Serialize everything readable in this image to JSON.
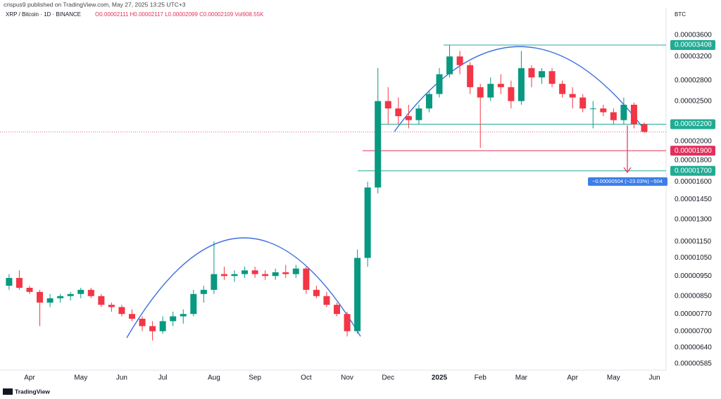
{
  "header": {
    "byline": "crispus9 published on TradingView.com, May 27, 2025 13:25 UTC+3",
    "symbol": "XRP / Bitcoin · 1D · BINANCE",
    "ohlc": "O0.00002111 H0.00002117 L0.00002099 C0.00002109 Vol908.55K",
    "currency": "BTC"
  },
  "footer": {
    "brand": "TradingView"
  },
  "chart_data": {
    "type": "candlestick",
    "log_scale": true,
    "grid": false,
    "up_color": "#089981",
    "down_color": "#f23645",
    "categories": [
      null,
      null,
      "Apr",
      null,
      null,
      null,
      null,
      "May",
      null,
      null,
      null,
      "Jun",
      null,
      null,
      null,
      "Jul",
      null,
      null,
      null,
      null,
      "Aug",
      null,
      null,
      null,
      "Sep",
      null,
      null,
      null,
      null,
      "Oct",
      null,
      null,
      null,
      "Nov",
      null,
      null,
      null,
      "Dec",
      null,
      null,
      null,
      null,
      "2025",
      null,
      null,
      null,
      "Feb",
      null,
      null,
      null,
      "Mar",
      null,
      null,
      null,
      null,
      "Apr",
      null,
      null,
      null,
      "May",
      null,
      null,
      null,
      "Jun"
    ],
    "open": [
      9e-06,
      9.4e-06,
      8.9e-06,
      8.7e-06,
      8.2e-06,
      8.4e-06,
      8.5e-06,
      8.6e-06,
      8.8e-06,
      8.5e-06,
      8.1e-06,
      8e-06,
      7.7e-06,
      7.5e-06,
      7.2e-06,
      7e-06,
      7.4e-06,
      7.6e-06,
      7.7e-06,
      8.6e-06,
      8.8e-06,
      9.6e-06,
      9.5e-06,
      9.6e-06,
      9.8e-06,
      9.6e-06,
      9.5e-06,
      9.7e-06,
      9.6e-06,
      9.9e-06,
      8.8e-06,
      8.5e-06,
      8.1e-06,
      7.7e-06,
      7e-06,
      1.05e-05,
      1.55e-05,
      2.5e-05,
      2.4e-05,
      2.3e-05,
      2.25e-05,
      2.4e-05,
      2.6e-05,
      2.9e-05,
      3.2e-05,
      3.05e-05,
      2.7e-05,
      2.55e-05,
      2.75e-05,
      2.7e-05,
      2.5e-05,
      3e-05,
      2.85e-05,
      2.95e-05,
      2.75e-05,
      2.6e-05,
      2.55e-05,
      2.4e-05,
      2.4e-05,
      2.35e-05,
      2.25e-05,
      2.45e-05,
      2.2e-05,
      null
    ],
    "high": [
      9.6e-06,
      9.8e-06,
      9e-06,
      8.8e-06,
      8.6e-06,
      8.6e-06,
      8.7e-06,
      8.9e-06,
      8.9e-06,
      8.6e-06,
      8.2e-06,
      8.1e-06,
      7.9e-06,
      7.6e-06,
      7.4e-06,
      7.6e-06,
      7.8e-06,
      7.9e-06,
      8.8e-06,
      9e-06,
      1.15e-05,
      1e-05,
      9.8e-06,
      1e-05,
      1e-05,
      9.8e-06,
      9.9e-06,
      1.01e-05,
      1.01e-05,
      1e-05,
      9e-06,
      8.7e-06,
      8.2e-06,
      7.8e-06,
      1.1e-05,
      1.6e-05,
      3e-05,
      2.7e-05,
      2.55e-05,
      2.45e-05,
      2.45e-05,
      2.65e-05,
      3e-05,
      3.408e-05,
      3.3e-05,
      3.1e-05,
      2.75e-05,
      2.85e-05,
      2.9e-05,
      2.8e-05,
      3.3e-05,
      3.05e-05,
      3e-05,
      3e-05,
      2.8e-05,
      2.7e-05,
      2.6e-05,
      2.5e-05,
      2.45e-05,
      2.4e-05,
      2.55e-05,
      2.48e-05,
      2.22e-05,
      null
    ],
    "low": [
      8.8e-06,
      8.8e-06,
      8.6e-06,
      7.2e-06,
      8e-06,
      8.2e-06,
      8.3e-06,
      8.4e-06,
      8.4e-06,
      8e-06,
      7.8e-06,
      7.6e-06,
      7.4e-06,
      7e-06,
      6.65e-06,
      6.9e-06,
      7.2e-06,
      7.3e-06,
      7.6e-06,
      8.2e-06,
      8.6e-06,
      9.3e-06,
      9.2e-06,
      9.4e-06,
      9.4e-06,
      9.3e-06,
      9.3e-06,
      9.4e-06,
      9.4e-06,
      8.6e-06,
      8.4e-06,
      8e-06,
      7.6e-06,
      6.8e-06,
      6.9e-06,
      1e-05,
      1.5e-05,
      2.2e-05,
      2.2e-05,
      2.15e-05,
      2.2e-05,
      2.35e-05,
      2.55e-05,
      2.85e-05,
      2.9e-05,
      2.6e-05,
      1.93e-05,
      2.5e-05,
      2.6e-05,
      2.4e-05,
      2.45e-05,
      2.7e-05,
      2.75e-05,
      2.7e-05,
      2.55e-05,
      2.4e-05,
      2.35e-05,
      2.15e-05,
      2.3e-05,
      2.2e-05,
      2.2e-05,
      2.15e-05,
      2.099e-05,
      null
    ],
    "close": [
      9.4e-06,
      8.9e-06,
      8.7e-06,
      8.2e-06,
      8.4e-06,
      8.5e-06,
      8.6e-06,
      8.8e-06,
      8.5e-06,
      8.1e-06,
      8e-06,
      7.7e-06,
      7.5e-06,
      7.2e-06,
      7e-06,
      7.4e-06,
      7.6e-06,
      7.7e-06,
      8.6e-06,
      8.8e-06,
      9.6e-06,
      9.5e-06,
      9.6e-06,
      9.8e-06,
      9.6e-06,
      9.5e-06,
      9.7e-06,
      9.6e-06,
      9.9e-06,
      8.8e-06,
      8.5e-06,
      8.1e-06,
      7.7e-06,
      7e-06,
      1.05e-05,
      1.55e-05,
      2.5e-05,
      2.4e-05,
      2.3e-05,
      2.25e-05,
      2.4e-05,
      2.6e-05,
      2.9e-05,
      3.2e-05,
      3.05e-05,
      2.7e-05,
      2.55e-05,
      2.75e-05,
      2.7e-05,
      2.5e-05,
      3e-05,
      2.85e-05,
      2.95e-05,
      2.75e-05,
      2.6e-05,
      2.55e-05,
      2.4e-05,
      2.4e-05,
      2.35e-05,
      2.25e-05,
      2.45e-05,
      2.2e-05,
      2.109e-05,
      null
    ],
    "ylim": [
      5.6e-06,
      4.125e-05
    ],
    "yticks": [
      {
        "value": 3.6e-05,
        "label": "0.00003600"
      },
      {
        "value": 3.2e-05,
        "label": "0.00003200"
      },
      {
        "value": 2.8e-05,
        "label": "0.00002800"
      },
      {
        "value": 2.5e-05,
        "label": "0.00002500"
      },
      {
        "value": 2e-05,
        "label": "0.00002000"
      },
      {
        "value": 1.8e-05,
        "label": "0.00001800"
      },
      {
        "value": 1.6e-05,
        "label": "0.00001600"
      },
      {
        "value": 1.45e-05,
        "label": "0.00001450"
      },
      {
        "value": 1.3e-05,
        "label": "0.00001300"
      },
      {
        "value": 1.15e-05,
        "label": "0.00001150"
      },
      {
        "value": 1.05e-05,
        "label": "0.00001050"
      },
      {
        "value": 9.5e-06,
        "label": "0.00000950"
      },
      {
        "value": 8.5e-06,
        "label": "0.00000850"
      },
      {
        "value": 7.7e-06,
        "label": "0.00000770"
      },
      {
        "value": 7e-06,
        "label": "0.00000700"
      },
      {
        "value": 6.4e-06,
        "label": "0.00000640"
      },
      {
        "value": 5.85e-06,
        "label": "0.00000585"
      }
    ],
    "levels": [
      {
        "value": 3.408e-05,
        "label": "0.00003408",
        "color": "#22ab94"
      },
      {
        "value": 2.2e-05,
        "label": "0.00002200",
        "color": "#22ab94"
      },
      {
        "value": 1.9e-05,
        "label": "0.00001900",
        "color": "#e0315c"
      },
      {
        "value": 1.7e-05,
        "label": "0.00001700",
        "color": "#22ab94"
      }
    ],
    "measurement": "−0.00000504 (−23.03%) −504"
  }
}
